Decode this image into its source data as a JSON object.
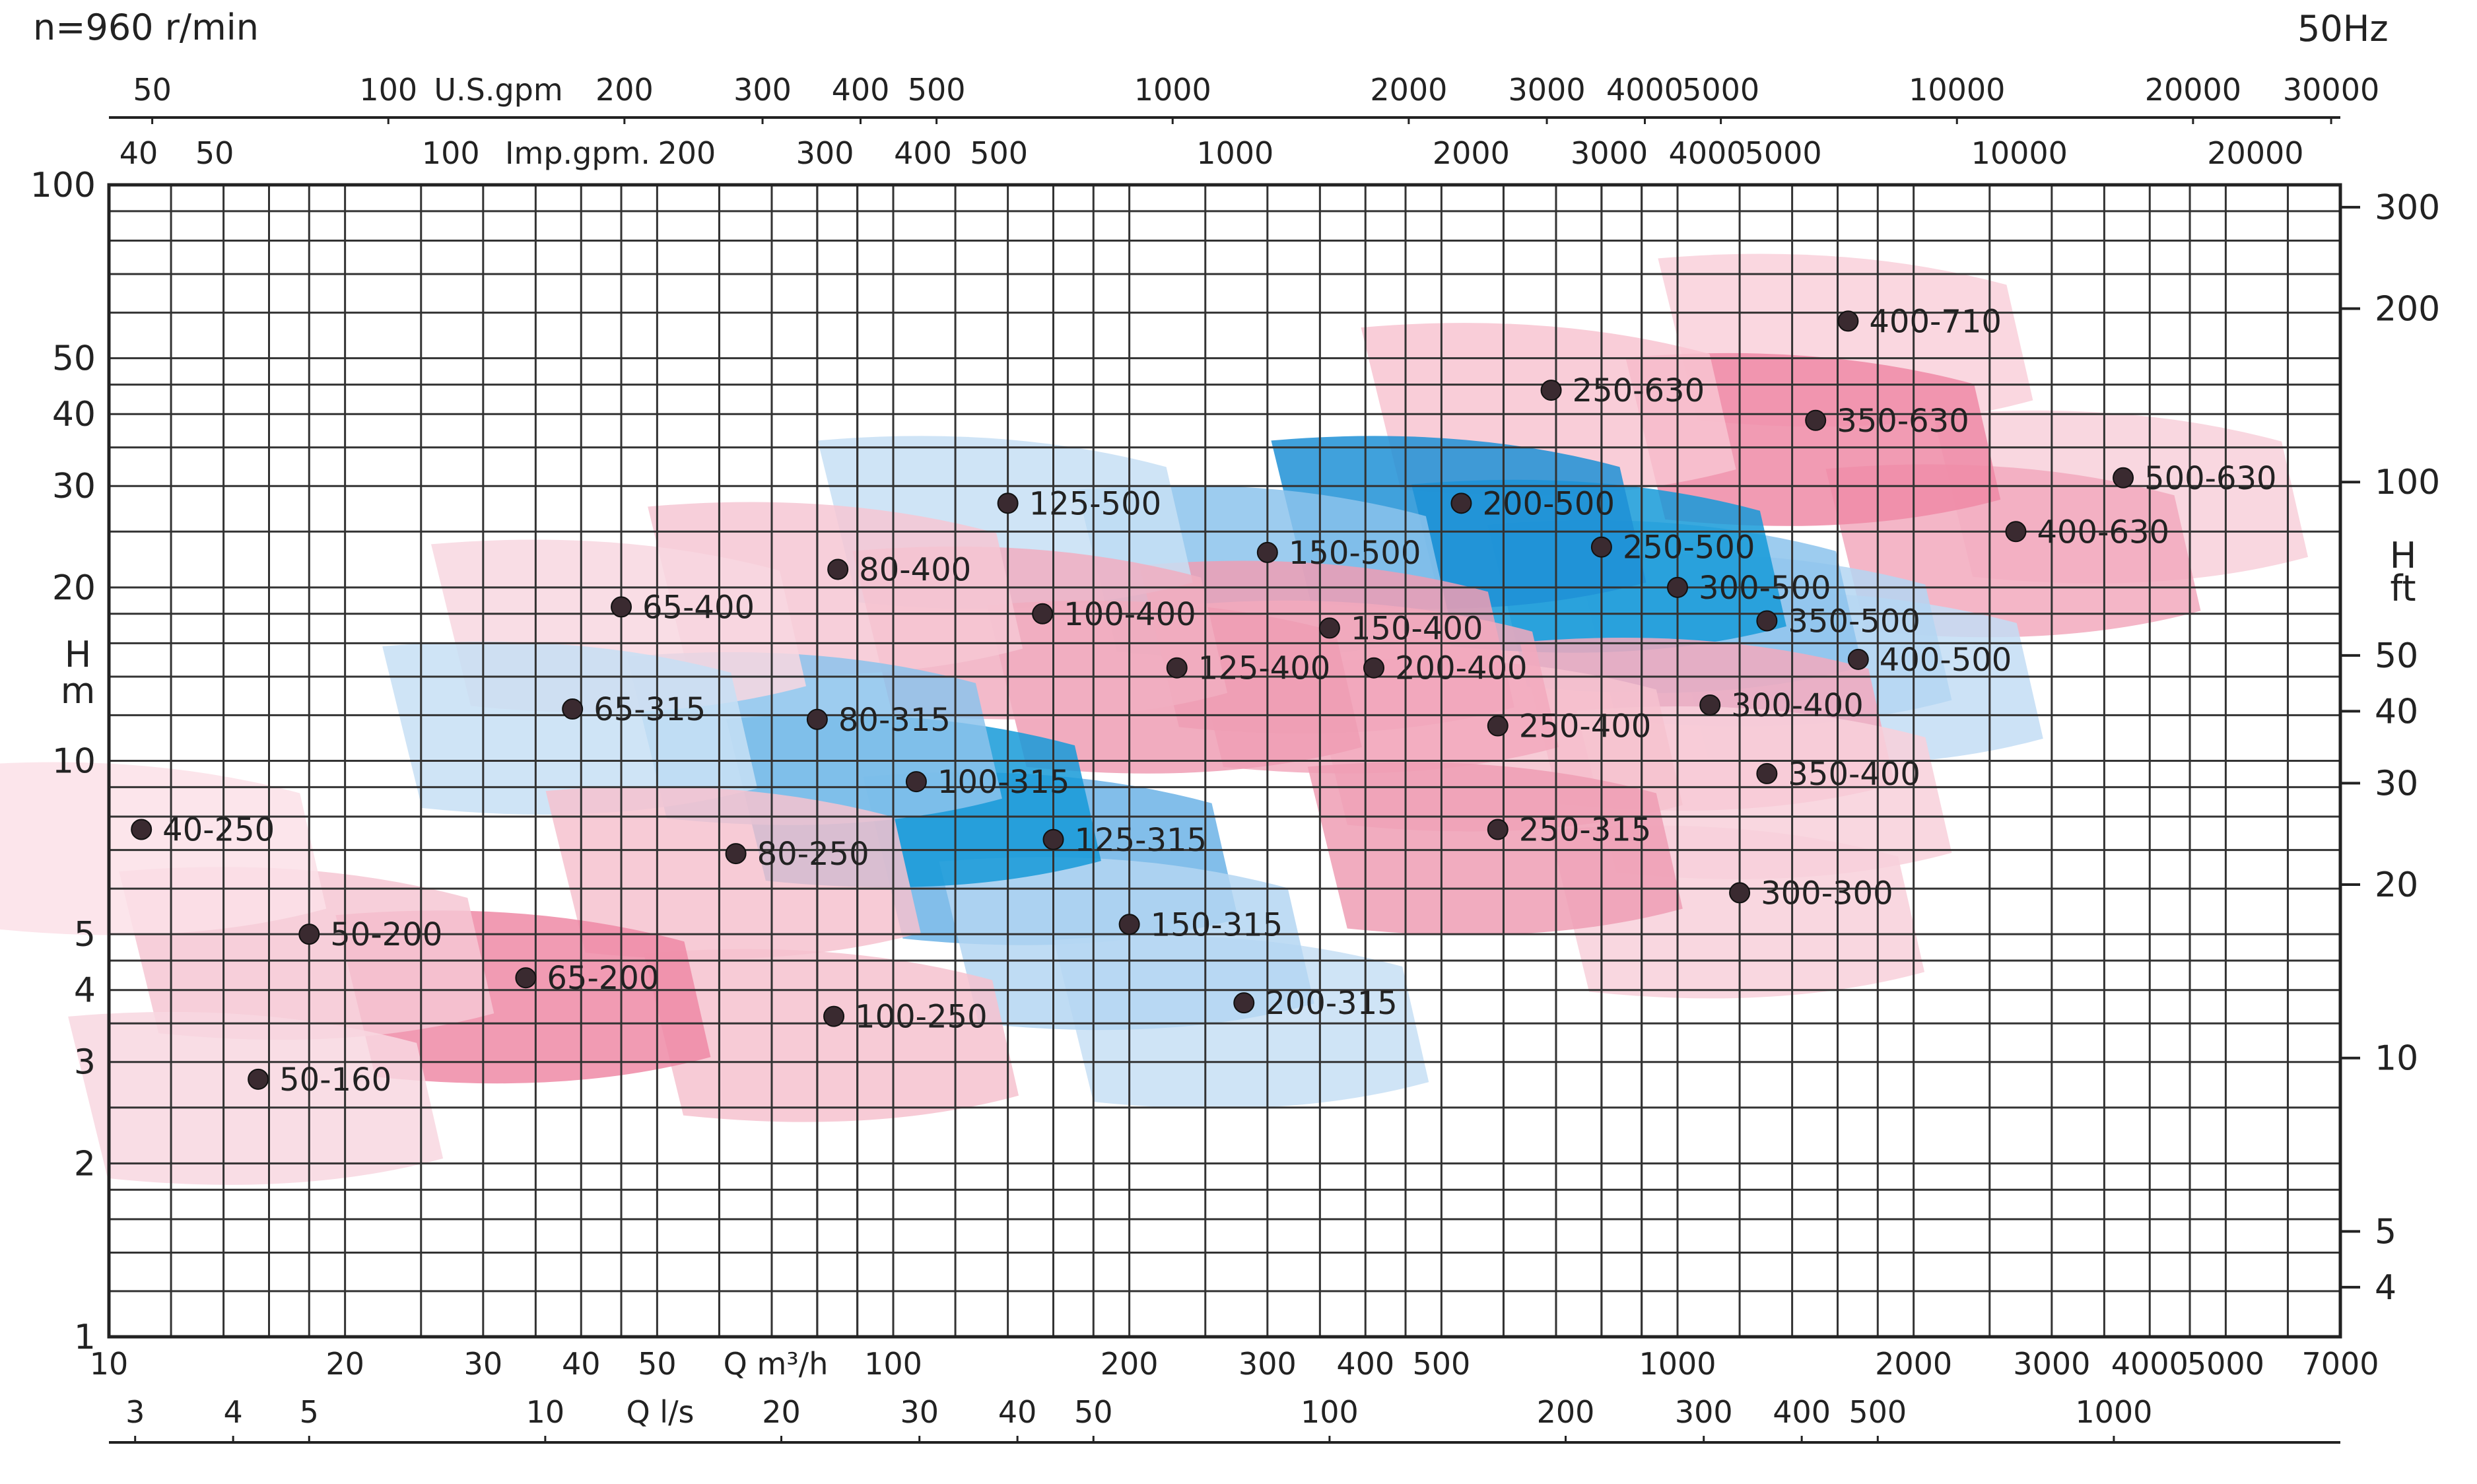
{
  "chart_data": {
    "type": "area",
    "title": "",
    "corner_left": "n=960 r/min",
    "corner_right": "50Hz",
    "axes": {
      "x_bottom": {
        "label": "Q m³/h",
        "scale": "log",
        "range": [
          10,
          7000
        ],
        "ticks": [
          "10",
          "20",
          "30",
          "40",
          "50",
          "100",
          "200",
          "300",
          "400",
          "500",
          "1000",
          "2000",
          "3000",
          "4000",
          "5000",
          "7000"
        ]
      },
      "x_bottom2": {
        "label": "Q l/s",
        "ticks": [
          "3",
          "4",
          "5",
          "10",
          "20",
          "30",
          "40",
          "50",
          "100",
          "200",
          "300",
          "400",
          "500",
          "1000"
        ]
      },
      "x_top": {
        "label": "U.S.gpm",
        "ticks": [
          "50",
          "100",
          "200",
          "300",
          "400",
          "500",
          "1000",
          "2000",
          "3000",
          "4000",
          "5000",
          "10000",
          "20000",
          "30000"
        ]
      },
      "x_top2": {
        "label": "Imp.gpm.",
        "ticks": [
          "40",
          "50",
          "100",
          "200",
          "300",
          "400",
          "500",
          "1000",
          "2000",
          "3000",
          "4000",
          "5000",
          "10000",
          "20000"
        ]
      },
      "y_left": {
        "label_top": "H",
        "label_bottom": "m",
        "scale": "log",
        "range": [
          1,
          100
        ],
        "ticks": [
          "1",
          "2",
          "3",
          "4",
          "5",
          "10",
          "20",
          "30",
          "40",
          "50",
          "100"
        ]
      },
      "y_right": {
        "label_top": "H",
        "label_bottom": "ft",
        "ticks": [
          "4",
          "5",
          "10",
          "20",
          "30",
          "40",
          "50",
          "100",
          "200",
          "300"
        ]
      }
    },
    "grid": true,
    "series": [
      {
        "name": "400-710",
        "color": "#f9d0da",
        "q": 1650,
        "h": 58
      },
      {
        "name": "250-630",
        "color": "#f8c4d1",
        "q": 690,
        "h": 44
      },
      {
        "name": "350-630",
        "color": "#ef8aa6",
        "q": 1500,
        "h": 39
      },
      {
        "name": "500-630",
        "color": "#f8d0da",
        "q": 3700,
        "h": 31
      },
      {
        "name": "400-630",
        "color": "#f2a9bd",
        "q": 2700,
        "h": 25
      },
      {
        "name": "125-500",
        "color": "#c7dff4",
        "q": 140,
        "h": 28
      },
      {
        "name": "200-500",
        "color": "#1e90d6",
        "q": 530,
        "h": 28
      },
      {
        "name": "150-500",
        "color": "#8cc3ec",
        "q": 300,
        "h": 23
      },
      {
        "name": "250-500",
        "color": "#169ad8",
        "q": 800,
        "h": 23.5
      },
      {
        "name": "300-500",
        "color": "#8cc3ec",
        "q": 1000,
        "h": 20
      },
      {
        "name": "350-500",
        "color": "#b4d6f2",
        "q": 1300,
        "h": 17.5
      },
      {
        "name": "400-500",
        "color": "#c3ddf4",
        "q": 1700,
        "h": 15
      },
      {
        "name": "65-400",
        "color": "#f8d7e0",
        "q": 45,
        "h": 18.5
      },
      {
        "name": "80-400",
        "color": "#f6c7d3",
        "q": 85,
        "h": 21.5
      },
      {
        "name": "100-400",
        "color": "#f1aec1",
        "q": 155,
        "h": 18
      },
      {
        "name": "150-400",
        "color": "#ef9db4",
        "q": 360,
        "h": 17
      },
      {
        "name": "125-400",
        "color": "#ef9db4",
        "q": 230,
        "h": 14.5
      },
      {
        "name": "200-400",
        "color": "#f2a9bd",
        "q": 410,
        "h": 14.5
      },
      {
        "name": "250-400",
        "color": "#f6c2cf",
        "q": 590,
        "h": 11.5
      },
      {
        "name": "300-400",
        "color": "#f2a9bd",
        "q": 1100,
        "h": 12.5
      },
      {
        "name": "350-400",
        "color": "#f8d0da",
        "q": 1300,
        "h": 9.5
      },
      {
        "name": "65-315",
        "color": "#c7dff4",
        "q": 39,
        "h": 12.3
      },
      {
        "name": "80-315",
        "color": "#8cc3ec",
        "q": 80,
        "h": 11.8
      },
      {
        "name": "100-315",
        "color": "#169ad8",
        "q": 107,
        "h": 9.2
      },
      {
        "name": "125-315",
        "color": "#6cb3e6",
        "q": 160,
        "h": 7.3
      },
      {
        "name": "150-315",
        "color": "#b4d6f2",
        "q": 200,
        "h": 5.2
      },
      {
        "name": "200-315",
        "color": "#c7dff4",
        "q": 280,
        "h": 3.8
      },
      {
        "name": "250-315",
        "color": "#ef9db4",
        "q": 590,
        "h": 7.6
      },
      {
        "name": "300-300",
        "color": "#f8d0da",
        "q": 1200,
        "h": 5.9
      },
      {
        "name": "40-250",
        "color": "#fbe1e7",
        "q": 11,
        "h": 7.6
      },
      {
        "name": "80-250",
        "color": "#f6c2cf",
        "q": 63,
        "h": 6.9
      },
      {
        "name": "50-200",
        "color": "#f6c7d3",
        "q": 18,
        "h": 5
      },
      {
        "name": "65-200",
        "color": "#ef8aa6",
        "q": 34,
        "h": 4.2
      },
      {
        "name": "100-250",
        "color": "#f6c2cf",
        "q": 84,
        "h": 3.6
      },
      {
        "name": "50-160",
        "color": "#f8d7e0",
        "q": 15.5,
        "h": 2.8
      }
    ]
  }
}
